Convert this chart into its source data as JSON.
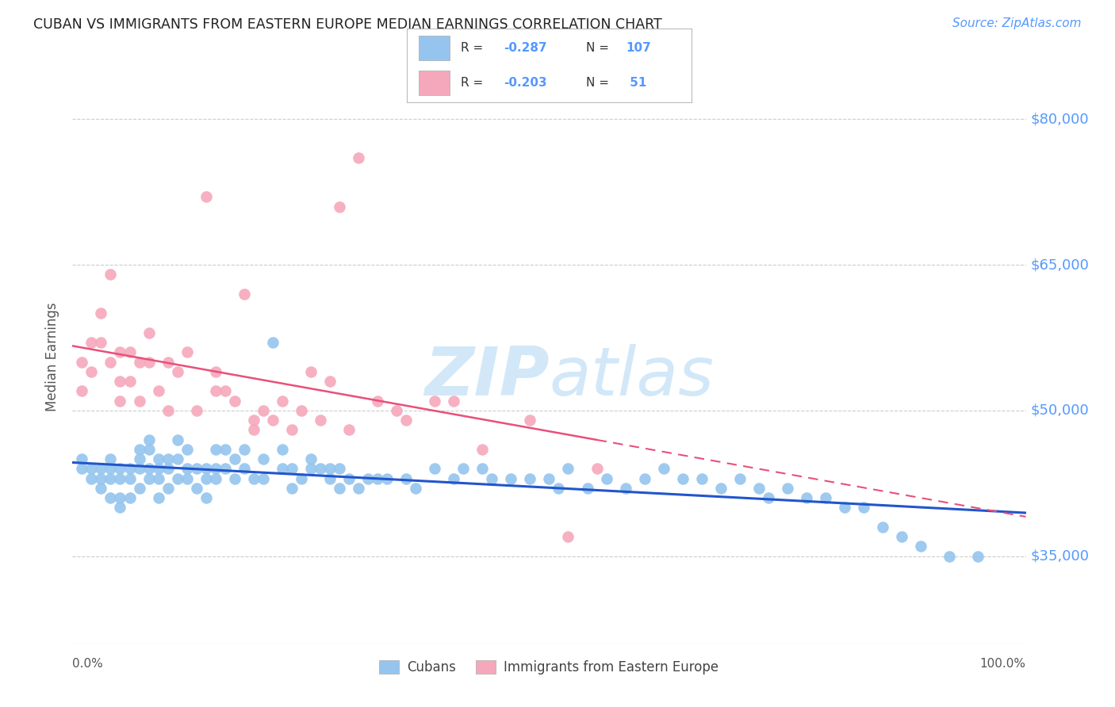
{
  "title": "CUBAN VS IMMIGRANTS FROM EASTERN EUROPE MEDIAN EARNINGS CORRELATION CHART",
  "source": "Source: ZipAtlas.com",
  "ylabel": "Median Earnings",
  "legend_label1": "Cubans",
  "legend_label2": "Immigrants from Eastern Europe",
  "r1_text": "-0.287",
  "n1_text": "107",
  "r2_text": "-0.203",
  "n2_text": "51",
  "color_blue": "#95C5EE",
  "color_pink": "#F5A8BC",
  "color_blue_line": "#2255CC",
  "color_pink_line": "#E8507A",
  "color_title": "#222222",
  "color_axis_right": "#5599FF",
  "color_source": "#5599FF",
  "color_watermark": "#D2E8F8",
  "color_grid": "#CCCCCC",
  "ytick_vals": [
    35000,
    50000,
    65000,
    80000
  ],
  "ylim": [
    26000,
    85000
  ],
  "xlim": [
    0.0,
    1.0
  ],
  "blue_x": [
    0.01,
    0.01,
    0.02,
    0.02,
    0.03,
    0.03,
    0.03,
    0.04,
    0.04,
    0.04,
    0.04,
    0.05,
    0.05,
    0.05,
    0.05,
    0.06,
    0.06,
    0.06,
    0.07,
    0.07,
    0.07,
    0.07,
    0.08,
    0.08,
    0.08,
    0.08,
    0.09,
    0.09,
    0.09,
    0.09,
    0.1,
    0.1,
    0.1,
    0.11,
    0.11,
    0.11,
    0.12,
    0.12,
    0.12,
    0.13,
    0.13,
    0.14,
    0.14,
    0.14,
    0.15,
    0.15,
    0.15,
    0.16,
    0.16,
    0.17,
    0.17,
    0.18,
    0.18,
    0.19,
    0.2,
    0.2,
    0.21,
    0.22,
    0.22,
    0.23,
    0.23,
    0.24,
    0.25,
    0.25,
    0.26,
    0.27,
    0.27,
    0.28,
    0.28,
    0.29,
    0.3,
    0.31,
    0.32,
    0.33,
    0.35,
    0.36,
    0.38,
    0.4,
    0.41,
    0.43,
    0.44,
    0.46,
    0.48,
    0.5,
    0.51,
    0.52,
    0.54,
    0.56,
    0.58,
    0.6,
    0.62,
    0.64,
    0.66,
    0.68,
    0.7,
    0.72,
    0.73,
    0.75,
    0.77,
    0.79,
    0.81,
    0.83,
    0.85,
    0.87,
    0.89,
    0.92,
    0.95
  ],
  "blue_y": [
    45000,
    44000,
    44000,
    43000,
    44000,
    43000,
    42000,
    45000,
    44000,
    43000,
    41000,
    44000,
    43000,
    41000,
    40000,
    44000,
    43000,
    41000,
    46000,
    45000,
    44000,
    42000,
    47000,
    46000,
    44000,
    43000,
    45000,
    44000,
    43000,
    41000,
    45000,
    44000,
    42000,
    47000,
    45000,
    43000,
    46000,
    44000,
    43000,
    44000,
    42000,
    44000,
    43000,
    41000,
    46000,
    44000,
    43000,
    46000,
    44000,
    45000,
    43000,
    46000,
    44000,
    43000,
    45000,
    43000,
    57000,
    46000,
    44000,
    44000,
    42000,
    43000,
    45000,
    44000,
    44000,
    44000,
    43000,
    44000,
    42000,
    43000,
    42000,
    43000,
    43000,
    43000,
    43000,
    42000,
    44000,
    43000,
    44000,
    44000,
    43000,
    43000,
    43000,
    43000,
    42000,
    44000,
    42000,
    43000,
    42000,
    43000,
    44000,
    43000,
    43000,
    42000,
    43000,
    42000,
    41000,
    42000,
    41000,
    41000,
    40000,
    40000,
    38000,
    37000,
    36000,
    35000,
    35000
  ],
  "pink_x": [
    0.01,
    0.01,
    0.02,
    0.02,
    0.03,
    0.03,
    0.04,
    0.04,
    0.05,
    0.05,
    0.05,
    0.06,
    0.06,
    0.07,
    0.07,
    0.08,
    0.08,
    0.09,
    0.1,
    0.1,
    0.11,
    0.12,
    0.13,
    0.14,
    0.15,
    0.15,
    0.16,
    0.17,
    0.18,
    0.19,
    0.19,
    0.2,
    0.21,
    0.22,
    0.23,
    0.24,
    0.25,
    0.26,
    0.27,
    0.28,
    0.29,
    0.3,
    0.32,
    0.34,
    0.35,
    0.38,
    0.4,
    0.43,
    0.48,
    0.52,
    0.55
  ],
  "pink_y": [
    55000,
    52000,
    57000,
    54000,
    60000,
    57000,
    64000,
    55000,
    56000,
    53000,
    51000,
    56000,
    53000,
    55000,
    51000,
    58000,
    55000,
    52000,
    55000,
    50000,
    54000,
    56000,
    50000,
    72000,
    54000,
    52000,
    52000,
    51000,
    62000,
    49000,
    48000,
    50000,
    49000,
    51000,
    48000,
    50000,
    54000,
    49000,
    53000,
    71000,
    48000,
    76000,
    51000,
    50000,
    49000,
    51000,
    51000,
    46000,
    49000,
    37000,
    44000
  ]
}
